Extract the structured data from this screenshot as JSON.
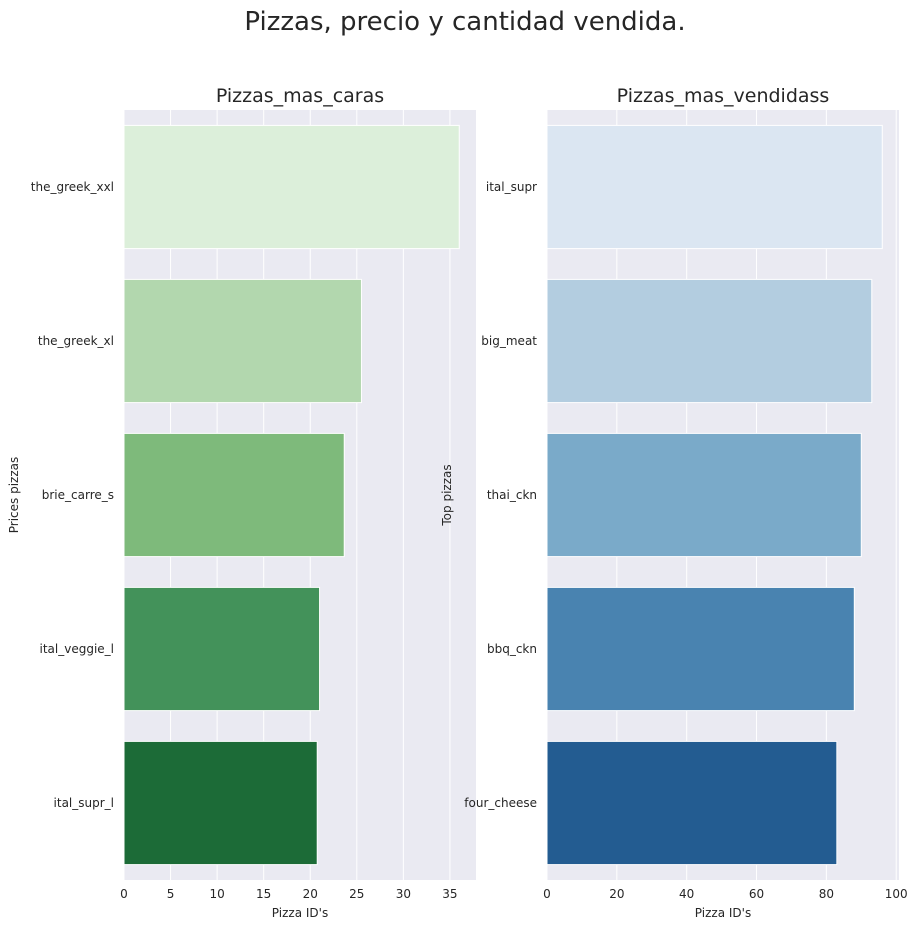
{
  "suptitle": "Pizzas, precio y cantidad vendida.",
  "chart_data": [
    {
      "type": "bar",
      "orientation": "horizontal",
      "title": "Pizzas_mas_caras",
      "xlabel": "Pizza ID's",
      "ylabel": "Prices pizzas",
      "categories": [
        "the_greek_xxl",
        "the_greek_xl",
        "brie_carre_s",
        "ital_veggie_l",
        "ital_supr_l"
      ],
      "values": [
        36.0,
        25.5,
        23.65,
        21.0,
        20.75
      ],
      "xlim": [
        0,
        37.8
      ],
      "xticks": [
        0,
        5,
        10,
        15,
        20,
        25,
        30,
        35
      ],
      "colors": [
        "#dcefda",
        "#b2d7ae",
        "#7eba7b",
        "#43925a",
        "#1c6b37"
      ],
      "grid": true
    },
    {
      "type": "bar",
      "orientation": "horizontal",
      "title": "Pizzas_mas_vendidass",
      "xlabel": "Pizza ID's",
      "ylabel": "Top pizzas",
      "categories": [
        "ital_supr",
        "big_meat",
        "thai_ckn",
        "bbq_ckn",
        "four_cheese"
      ],
      "values": [
        96,
        93,
        90,
        88,
        83
      ],
      "xlim": [
        0,
        100.8
      ],
      "xticks": [
        0,
        20,
        40,
        60,
        80,
        100
      ],
      "colors": [
        "#dbe6f2",
        "#b3cde0",
        "#7aaac9",
        "#4983b0",
        "#235c91"
      ],
      "grid": true
    }
  ]
}
